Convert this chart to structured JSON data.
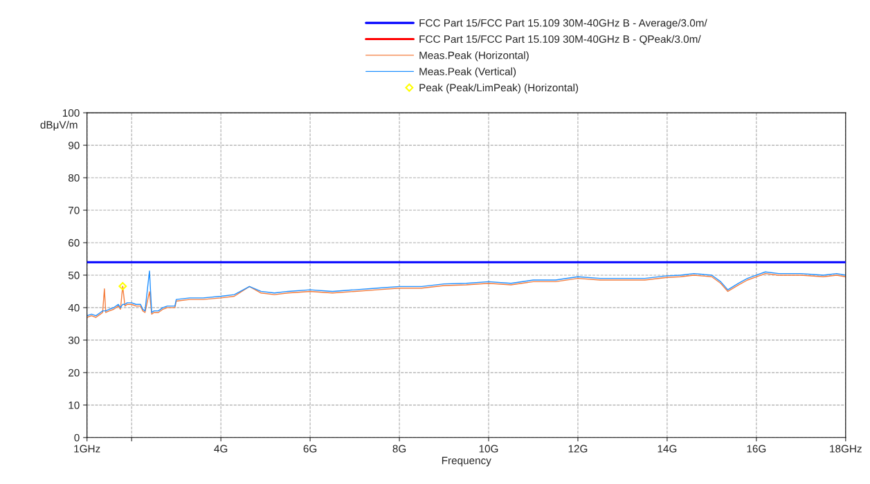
{
  "chart_data": {
    "type": "line",
    "xlabel": "Frequency",
    "ylabel": "dBμV/m",
    "xlim": [
      1,
      18
    ],
    "ylim": [
      0,
      100
    ],
    "xticks": [
      {
        "value": 1,
        "label": "1GHz"
      },
      {
        "value": 2,
        "label": null
      },
      {
        "value": 4,
        "label": "4G"
      },
      {
        "value": 6,
        "label": "6G"
      },
      {
        "value": 8,
        "label": "8G"
      },
      {
        "value": 10,
        "label": "10G"
      },
      {
        "value": 12,
        "label": "12G"
      },
      {
        "value": 14,
        "label": "14G"
      },
      {
        "value": 16,
        "label": "16G"
      },
      {
        "value": 18,
        "label": "18GHz"
      }
    ],
    "yticks": [
      0,
      10,
      20,
      30,
      40,
      50,
      60,
      70,
      80,
      90,
      100
    ],
    "grid": true,
    "legend": "top right",
    "series": [
      {
        "name": "FCC Part 15/FCC Part 15.109 30M-40GHz B - Average/3.0m/",
        "color": "#0000ff",
        "x": [
          1,
          18
        ],
        "values": [
          54,
          54
        ]
      },
      {
        "name": "FCC Part 15/FCC Part 15.109 30M-40GHz B - QPeak/3.0m/",
        "color": "#ff0000"
      },
      {
        "name": "Meas.Peak (Horizontal)",
        "color": "#f47c3c",
        "x": [
          1.0,
          1.1,
          1.2,
          1.3,
          1.35,
          1.39,
          1.42,
          1.5,
          1.6,
          1.7,
          1.75,
          1.8,
          1.85,
          1.9,
          2.0,
          2.1,
          2.2,
          2.25,
          2.3,
          2.4,
          2.45,
          2.5,
          2.6,
          2.7,
          2.8,
          2.97,
          3.0,
          3.3,
          3.6,
          4.0,
          4.3,
          4.64,
          4.9,
          5.2,
          5.5,
          6.0,
          6.5,
          7.0,
          7.5,
          8.0,
          8.5,
          9.0,
          9.5,
          10.0,
          10.5,
          11.0,
          11.5,
          12.0,
          12.5,
          13.0,
          13.5,
          14.0,
          14.3,
          14.6,
          15.0,
          15.2,
          15.36,
          15.6,
          15.8,
          16.0,
          16.2,
          16.5,
          17.0,
          17.5,
          17.8,
          18.0
        ],
        "values": [
          37,
          37.5,
          37,
          38,
          38.5,
          45.8,
          38.5,
          39,
          39.5,
          40.5,
          39.5,
          46.6,
          40.5,
          41,
          41,
          40.5,
          40.5,
          39,
          38.5,
          44.9,
          38,
          38.5,
          38.5,
          39.5,
          40,
          40,
          42,
          42.5,
          42.5,
          43,
          43.5,
          46.5,
          44.5,
          44,
          44.5,
          45,
          44.5,
          45,
          45.5,
          46,
          46,
          46.8,
          47,
          47.5,
          47,
          48,
          48,
          49,
          48.5,
          48.5,
          48.5,
          49.3,
          49.5,
          50,
          49.5,
          47.5,
          45,
          47,
          48.5,
          49.5,
          50.5,
          50,
          50,
          49.5,
          50,
          49.5
        ]
      },
      {
        "name": "Meas.Peak (Vertical)",
        "color": "#1f8fff",
        "x": [
          1.0,
          1.1,
          1.2,
          1.3,
          1.35,
          1.39,
          1.42,
          1.5,
          1.6,
          1.7,
          1.75,
          1.8,
          1.85,
          1.9,
          2.0,
          2.1,
          2.2,
          2.25,
          2.3,
          2.4,
          2.45,
          2.5,
          2.6,
          2.7,
          2.8,
          2.97,
          3.0,
          3.3,
          3.6,
          4.0,
          4.3,
          4.64,
          4.9,
          5.2,
          5.5,
          6.0,
          6.5,
          7.0,
          7.5,
          8.0,
          8.5,
          9.0,
          9.5,
          10.0,
          10.5,
          11.0,
          11.5,
          12.0,
          12.5,
          13.0,
          13.5,
          14.0,
          14.3,
          14.6,
          15.0,
          15.2,
          15.36,
          15.6,
          15.8,
          16.0,
          16.2,
          16.5,
          17.0,
          17.5,
          17.8,
          18.0
        ],
        "values": [
          37.5,
          38,
          37.5,
          38.5,
          39,
          39,
          39,
          39.5,
          40,
          41,
          40,
          41,
          41,
          41.5,
          41.5,
          41,
          41,
          39.5,
          39,
          51.3,
          38.5,
          39,
          39,
          40,
          40.5,
          40.5,
          42.5,
          43,
          43,
          43.5,
          44,
          46.5,
          45,
          44.5,
          45,
          45.5,
          45,
          45.5,
          46,
          46.5,
          46.5,
          47.3,
          47.5,
          48,
          47.5,
          48.5,
          48.5,
          49.5,
          49,
          49,
          49,
          49.8,
          50,
          50.5,
          50,
          48,
          45.5,
          47.5,
          49,
          50,
          51,
          50.5,
          50.5,
          50,
          50.5,
          50
        ]
      },
      {
        "name": "Peak (Peak/LimPeak) (Horizontal)",
        "type": "scatter",
        "color": "#ffff00",
        "marker": "diamond",
        "x": [
          1.8
        ],
        "values": [
          46.6
        ]
      }
    ]
  }
}
